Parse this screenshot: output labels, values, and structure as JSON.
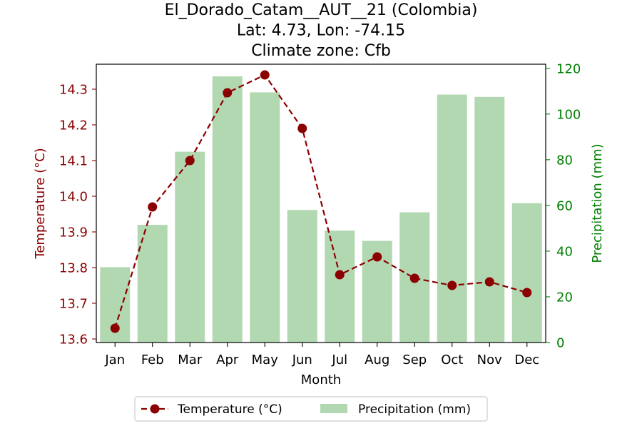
{
  "chart_data": {
    "type": "bar+line",
    "title_lines": [
      "El_Dorado_Catam__AUT__21 (Colombia)",
      "Lat: 4.73, Lon: -74.15",
      "Climate zone: Cfb"
    ],
    "xlabel": "Month",
    "y_left_label": "Temperature (°C)",
    "y_right_label": "Precipitation (mm)",
    "categories": [
      "Jan",
      "Feb",
      "Mar",
      "Apr",
      "May",
      "Jun",
      "Jul",
      "Aug",
      "Sep",
      "Oct",
      "Nov",
      "Dec"
    ],
    "temperature": {
      "name": "Temperature (°C)",
      "values": [
        13.63,
        13.97,
        14.1,
        14.29,
        14.34,
        14.19,
        13.78,
        13.83,
        13.77,
        13.75,
        13.76,
        13.73
      ],
      "ylim": [
        13.59,
        14.37
      ],
      "ticks": [
        13.6,
        13.7,
        13.8,
        13.9,
        14.0,
        14.1,
        14.2,
        14.3
      ],
      "tick_labels": [
        "13.6",
        "13.7",
        "13.8",
        "13.9",
        "14.0",
        "14.1",
        "14.2",
        "14.3"
      ]
    },
    "precipitation": {
      "name": "Precipitation (mm)",
      "values": [
        33,
        51.5,
        83.5,
        116.5,
        109.5,
        58,
        49,
        44.5,
        57,
        108.5,
        107.5,
        61
      ],
      "ylim": [
        0,
        121.8
      ],
      "ticks": [
        0,
        20,
        40,
        60,
        80,
        100,
        120
      ],
      "tick_labels": [
        "0",
        "20",
        "40",
        "60",
        "80",
        "100",
        "120"
      ]
    },
    "colors": {
      "temperature": "#8b0000",
      "precipitation_bar": "#b2d8b2",
      "precipitation_axis": "#008000",
      "text": "#000000"
    },
    "legend_position": "bottom-center"
  }
}
